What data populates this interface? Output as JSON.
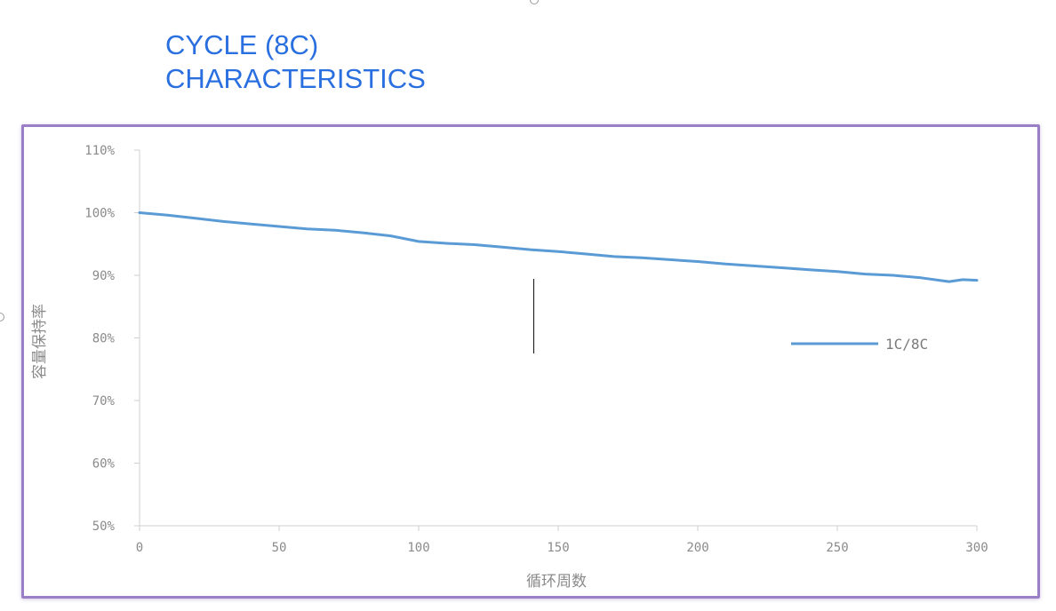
{
  "title_lines": [
    "CYCLE (8C)",
    "CHARACTERISTICS"
  ],
  "chart_data": {
    "type": "line",
    "title": "CYCLE (8C) CHARACTERISTICS",
    "xlabel": "循环周数",
    "ylabel": "容量保持率",
    "xlim": [
      0,
      300
    ],
    "ylim": [
      50,
      110
    ],
    "x_ticks": [
      0,
      50,
      100,
      150,
      200,
      250,
      300
    ],
    "y_ticks": [
      50,
      60,
      70,
      80,
      90,
      100,
      110
    ],
    "y_tick_labels": [
      "50%",
      "60%",
      "70%",
      "80%",
      "90%",
      "100%",
      "110%"
    ],
    "grid": false,
    "legend_position": "right",
    "series": [
      {
        "name": "1C/8C",
        "color": "#5b9bd5",
        "x": [
          0,
          10,
          20,
          30,
          40,
          50,
          60,
          70,
          80,
          90,
          100,
          110,
          120,
          130,
          140,
          150,
          160,
          170,
          180,
          190,
          200,
          210,
          220,
          230,
          240,
          250,
          260,
          270,
          280,
          290,
          295,
          300
        ],
        "y": [
          100,
          99.6,
          99.1,
          98.6,
          98.2,
          97.8,
          97.4,
          97.2,
          96.8,
          96.3,
          95.4,
          95.1,
          94.9,
          94.5,
          94.1,
          93.8,
          93.4,
          93.0,
          92.8,
          92.5,
          92.2,
          91.8,
          91.5,
          91.2,
          90.9,
          90.6,
          90.2,
          90.0,
          89.6,
          89.0,
          89.3,
          89.2
        ]
      }
    ]
  }
}
